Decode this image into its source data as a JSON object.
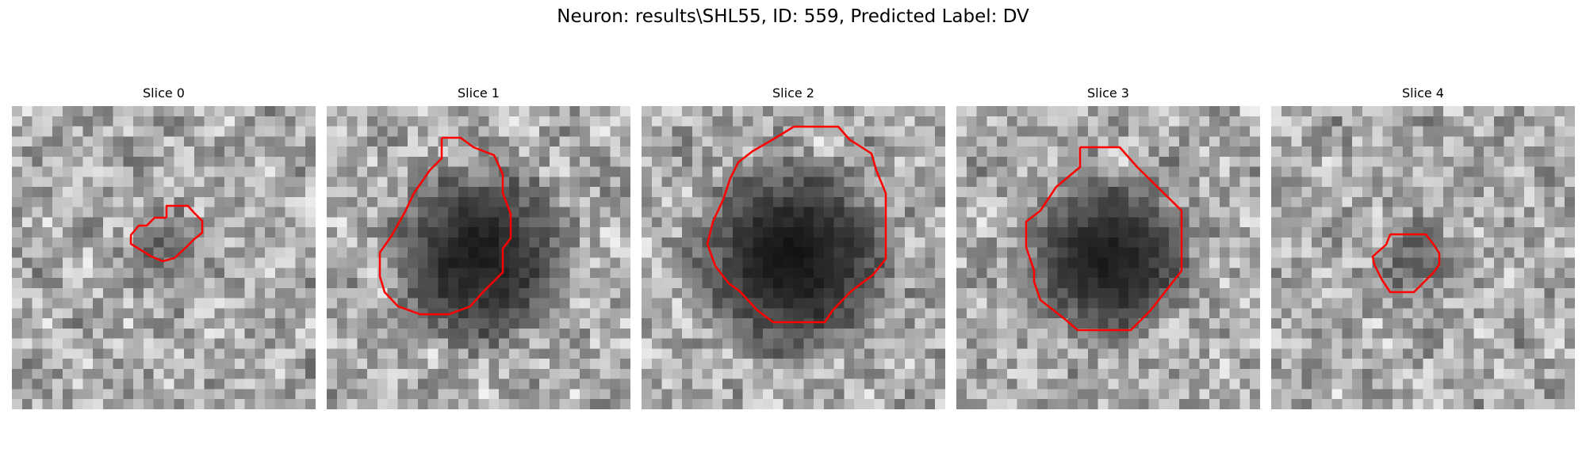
{
  "figure": {
    "title": "Neuron: results\\SHL55, ID: 559, Predicted Label: DV"
  },
  "panels": [
    {
      "title": "Slice 0",
      "blob_radius": 0.12,
      "blob_darkness": 0.45
    },
    {
      "title": "Slice 1",
      "blob_radius": 0.3,
      "blob_darkness": 0.85
    },
    {
      "title": "Slice 2",
      "blob_radius": 0.33,
      "blob_darkness": 0.9
    },
    {
      "title": "Slice 3",
      "blob_radius": 0.28,
      "blob_darkness": 0.85
    },
    {
      "title": "Slice 4",
      "blob_radius": 0.13,
      "blob_darkness": 0.45
    }
  ],
  "style": {
    "contour_color": "#ff0000",
    "image_colormap": "gray"
  }
}
